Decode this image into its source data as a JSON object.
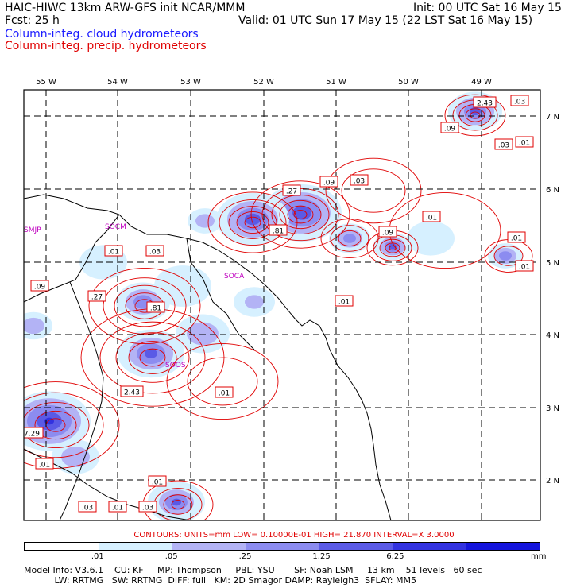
{
  "header": {
    "title_left": "HAIC-HIWC 13km ARW-GFS init   NCAR/MMM",
    "init": "Init: 00 UTC Sat 16 May 15",
    "fcst": "Fcst:    25 h",
    "valid": "Valid: 01 UTC Sun 17 May 15 (22 LST Sat 16 May 15)",
    "field_cloud": "Column-integ. cloud hydrometeors",
    "field_precip": "Column-integ. precip. hydrometeors"
  },
  "map": {
    "lon_labels": [
      "55 W",
      "54 W",
      "53 W",
      "52 W",
      "51 W",
      "50 W",
      "49 W"
    ],
    "lat_labels": [
      "7 N",
      "6 N",
      "5 N",
      "4 N",
      "3 N",
      "2 N"
    ],
    "stations": [
      {
        "id": "SMJP"
      },
      {
        "id": "SOCA"
      },
      {
        "id": "SOCM"
      },
      {
        "id": "SOOS"
      }
    ],
    "contour_values": [
      {
        "text": "2.43"
      },
      {
        "text": ".03"
      },
      {
        "text": ".09"
      },
      {
        "text": ".03"
      },
      {
        "text": ".01"
      },
      {
        "text": ".27"
      },
      {
        "text": ".09"
      },
      {
        "text": ".03"
      },
      {
        "text": ".81"
      },
      {
        "text": ".01"
      },
      {
        "text": ".09"
      },
      {
        "text": ".01"
      },
      {
        "text": ".01"
      },
      {
        "text": ".03"
      },
      {
        "text": ".01"
      },
      {
        "text": ".09"
      },
      {
        "text": ".27"
      },
      {
        "text": ".81"
      },
      {
        "text": ".01"
      },
      {
        "text": "2.43"
      },
      {
        "text": ".01"
      },
      {
        "text": "7.29"
      },
      {
        "text": ".01"
      },
      {
        "text": ".01"
      },
      {
        "text": ".03"
      },
      {
        "text": ".01"
      },
      {
        "text": ".03"
      }
    ]
  },
  "contours_info": "CONTOURS:  UNITS=mm  LOW= 0.10000E-01  HIGH=  21.870      INTERVAL=X  3.0000",
  "colorbar": {
    "colors": [
      "#ffffff",
      "#d6f0ff",
      "#b3b3f5",
      "#8c8cf0",
      "#5a5ae6",
      "#3232e0",
      "#1414dc"
    ],
    "ticks": [
      ".01",
      ".05",
      ".25",
      "1.25",
      "6.25"
    ],
    "units": "mm"
  },
  "footer": {
    "line1": "Model Info: V3.6.1    CU: KF     MP: Thompson     PBL: YSU       SF: Noah LSM     13 km    51 levels   60 sec",
    "line2": "           LW: RRTMG   SW: RRTMG  DIFF: full   KM: 2D Smagor DAMP: Rayleigh3  SFLAY: MM5"
  }
}
